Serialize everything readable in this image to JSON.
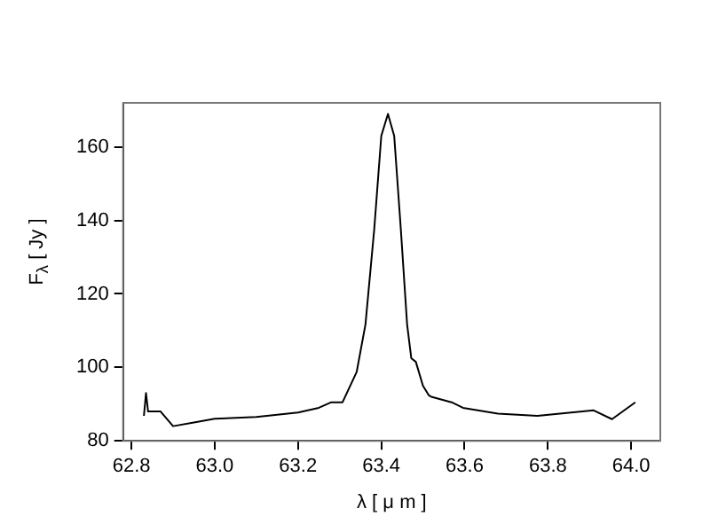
{
  "chart_data": {
    "type": "line",
    "xlabel": "λ [ μ m ]",
    "ylabel": "F$_{λ}$ [ Jy ]",
    "x": [
      62.83,
      62.835,
      62.84,
      62.87,
      62.9,
      62.95,
      63.0,
      63.1,
      63.2,
      63.25,
      63.28,
      63.307,
      63.341,
      63.362,
      63.383,
      63.4,
      63.416,
      63.431,
      63.447,
      63.462,
      63.472,
      63.483,
      63.5,
      63.514,
      63.52,
      63.569,
      63.596,
      63.68,
      63.775,
      63.91,
      63.954,
      64.01
    ],
    "values": [
      86.8,
      93,
      88,
      88,
      84,
      85,
      86,
      86.5,
      87.7,
      89,
      90.5,
      90.5,
      98.8,
      111.7,
      137.5,
      163,
      169,
      163,
      137.5,
      111.7,
      102.5,
      101.5,
      95,
      92.4,
      92,
      90.5,
      89,
      87.4,
      86.8,
      88.3,
      85.9,
      90.5
    ],
    "color": "#000000",
    "marker": "none",
    "line_style": "solid",
    "grid": false,
    "legend": false,
    "xlim": [
      62.78,
      64.07
    ],
    "ylim": [
      80,
      172
    ],
    "xticks": [
      {
        "value": 62.8,
        "label": "62.8"
      },
      {
        "value": 63,
        "label": "63.0"
      },
      {
        "value": 63.2,
        "label": "63.2"
      },
      {
        "value": 63.4,
        "label": "63.4"
      },
      {
        "value": 63.6,
        "label": "63.6"
      },
      {
        "value": 63.8,
        "label": "63.8"
      },
      {
        "value": 64,
        "label": "64.0"
      }
    ],
    "yticks": [
      80,
      100,
      120,
      140,
      160
    ]
  }
}
